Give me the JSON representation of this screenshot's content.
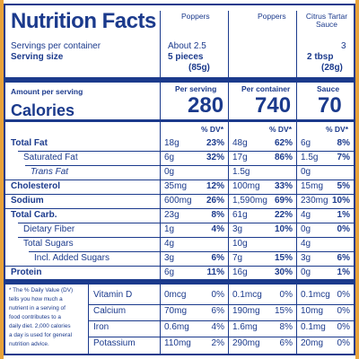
{
  "header": {
    "title": "Nutrition Facts",
    "columns": [
      "Poppers",
      "Poppers",
      "Citrus Tartar Sauce"
    ]
  },
  "servings": {
    "per_container_label": "Servings per container",
    "serving_size_label": "Serving size",
    "col1": {
      "per_container": "About 2.5",
      "size": "5 pieces",
      "size_g": "(85g)"
    },
    "col3": {
      "per_container": "3",
      "size": "2 tbsp",
      "size_g": "(28g)"
    }
  },
  "calories": {
    "amount_label": "Amount per serving",
    "label": "Calories",
    "col1": {
      "heading": "Per serving",
      "value": "280"
    },
    "col2": {
      "heading": "Per container",
      "value": "740"
    },
    "col3": {
      "heading": "Sauce",
      "value": "70"
    },
    "dv_heading": "% DV*"
  },
  "rows": [
    {
      "name": "Total Fat",
      "bold": true,
      "v1": "18g",
      "d1": "23%",
      "v2": "48g",
      "d2": "62%",
      "v3": "6g",
      "d3": "8%"
    },
    {
      "name": "Saturated Fat",
      "bold": false,
      "v1": "6g",
      "d1": "32%",
      "v2": "17g",
      "d2": "86%",
      "v3": "1.5g",
      "d3": "7%"
    },
    {
      "name": "Trans Fat",
      "bold": false,
      "v1": "0g",
      "d1": "",
      "v2": "1.5g",
      "d2": "",
      "v3": "0g",
      "d3": ""
    },
    {
      "name": "Cholesterol",
      "bold": true,
      "v1": "35mg",
      "d1": "12%",
      "v2": "100mg",
      "d2": "33%",
      "v3": "15mg",
      "d3": "5%"
    },
    {
      "name": "Sodium",
      "bold": true,
      "v1": "600mg",
      "d1": "26%",
      "v2": "1,590mg",
      "d2": "69%",
      "v3": "230mg",
      "d3": "10%"
    },
    {
      "name": "Total Carb.",
      "bold": true,
      "v1": "23g",
      "d1": "8%",
      "v2": "61g",
      "d2": "22%",
      "v3": "4g",
      "d3": "1%"
    },
    {
      "name": "Dietary Fiber",
      "bold": false,
      "v1": "1g",
      "d1": "4%",
      "v2": "3g",
      "d2": "10%",
      "v3": "0g",
      "d3": "0%"
    },
    {
      "name": "Total Sugars",
      "bold": false,
      "v1": "4g",
      "d1": "",
      "v2": "10g",
      "d2": "",
      "v3": "4g",
      "d3": ""
    },
    {
      "name": "Incl. Added Sugars",
      "bold": false,
      "v1": "3g",
      "d1": "6%",
      "v2": "7g",
      "d2": "15%",
      "v3": "3g",
      "d3": "6%"
    },
    {
      "name": "Protein",
      "bold": true,
      "v1": "6g",
      "d1": "11%",
      "v2": "16g",
      "d2": "30%",
      "v3": "0g",
      "d3": "1%"
    }
  ],
  "vitamins": [
    {
      "name": "Vitamin D",
      "v1": "0mcg",
      "d1": "0%",
      "v2": "0.1mcg",
      "d2": "0%",
      "v3": "0.1mcg",
      "d3": "0%"
    },
    {
      "name": "Calcium",
      "v1": "70mg",
      "d1": "6%",
      "v2": "190mg",
      "d2": "15%",
      "v3": "10mg",
      "d3": "0%"
    },
    {
      "name": "Iron",
      "v1": "0.6mg",
      "d1": "4%",
      "v2": "1.6mg",
      "d2": "8%",
      "v3": "0.1mg",
      "d3": "0%"
    },
    {
      "name": "Potassium",
      "v1": "110mg",
      "d1": "2%",
      "v2": "290mg",
      "d2": "6%",
      "v3": "20mg",
      "d3": "0%"
    }
  ],
  "footnote": [
    "* The % Daily Value (DV)",
    "tells you how much a",
    "nutrient in a serving of",
    "food contributes to a",
    "daily diet. 2,000 calories",
    "a day is used for general",
    "nutrition advice."
  ],
  "colors": {
    "ink": "#1b3a8c",
    "edge": "#e8a23a"
  }
}
